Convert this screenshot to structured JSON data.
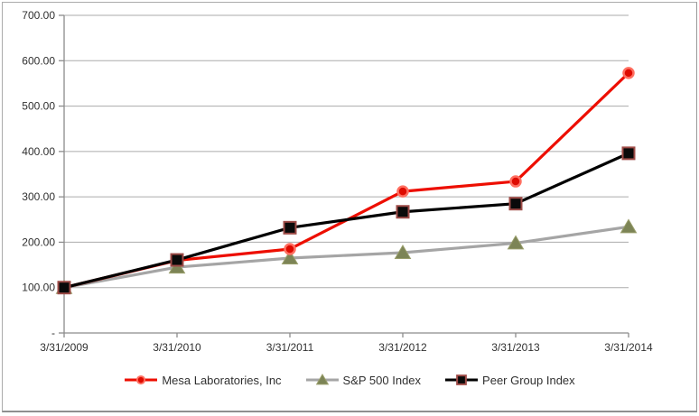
{
  "chart_data": {
    "type": "line",
    "title": "",
    "categories": [
      "3/31/2009",
      "3/31/2010",
      "3/31/2011",
      "3/31/2012",
      "3/31/2013",
      "3/31/2014"
    ],
    "series": [
      {
        "name": "Mesa Laboratories, Inc",
        "values": [
          100,
          160,
          185,
          312,
          334,
          573
        ],
        "line_color": "#ED0E00",
        "marker": "circle",
        "marker_fill": "#DE0B00",
        "marker_border": "#FF6F61"
      },
      {
        "name": "S&P 500 Index",
        "values": [
          100,
          145,
          165,
          177,
          198,
          234
        ],
        "line_color": "#A5A5A5",
        "marker": "triangle",
        "marker_fill": "#7C8456",
        "marker_border": "#999E6B"
      },
      {
        "name": "Peer Group Index",
        "values": [
          100,
          161,
          232,
          267,
          285,
          396
        ],
        "line_color": "#000000",
        "marker": "square",
        "marker_fill": "#0A0A0A",
        "marker_border": "#9E4B47"
      }
    ],
    "y_axis": {
      "min": 0,
      "max": 700,
      "step": 100,
      "tick_labels": [
        "-",
        "100.00",
        "200.00",
        "300.00",
        "400.00",
        "500.00",
        "600.00",
        "700.00"
      ]
    },
    "x_axis": {
      "tick_labels": [
        "3/31/2009",
        "3/31/2010",
        "3/31/2011",
        "3/31/2012",
        "3/31/2013",
        "3/31/2014"
      ]
    },
    "legend": {
      "position": "bottom"
    },
    "grid": true,
    "colors": {
      "background": "#FFFFFF",
      "border": "#ABABAB",
      "gridline": "#ABABAB",
      "axis": "#8C8C8C",
      "label": "#303030"
    }
  }
}
